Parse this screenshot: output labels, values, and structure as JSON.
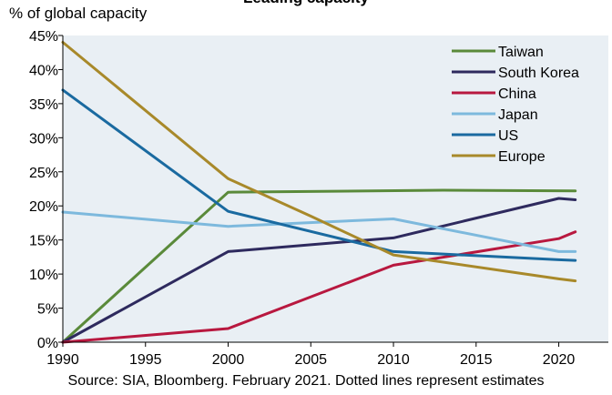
{
  "title": "Leading capacity",
  "y_unit_label": "% of global capacity",
  "source_note": "Source: SIA, Bloomberg. February 2021. Dotted lines represent estimates",
  "colors": {
    "plot_background": "#e9eff4",
    "axis": "#000000"
  },
  "chart_data": {
    "type": "line",
    "title": "Leading capacity",
    "ylabel": "% of global capacity",
    "xlabel": "",
    "xlim": [
      1990,
      2023
    ],
    "ylim": [
      0,
      45
    ],
    "x_ticks": [
      1990,
      1995,
      2000,
      2005,
      2010,
      2015,
      2020
    ],
    "y_ticks": [
      {
        "value": 0,
        "label": "0%"
      },
      {
        "value": 5,
        "label": "5%"
      },
      {
        "value": 10,
        "label": "10%"
      },
      {
        "value": 15,
        "label": "15%"
      },
      {
        "value": 20,
        "label": "20%"
      },
      {
        "value": 25,
        "label": "25%"
      },
      {
        "value": 30,
        "label": "30%"
      },
      {
        "value": 35,
        "label": "35%"
      },
      {
        "value": 40,
        "label": "40%"
      },
      {
        "value": 45,
        "label": "45%"
      }
    ],
    "grid": false,
    "legend_position": "top-right",
    "series": [
      {
        "name": "Taiwan",
        "color": "#5a8a3a",
        "x": [
          1990,
          2000,
          2013,
          2021
        ],
        "y": [
          0,
          22,
          22.3,
          22.2
        ]
      },
      {
        "name": "South Korea",
        "color": "#2e2a5e",
        "x": [
          1990,
          2000,
          2010,
          2020,
          2021
        ],
        "y": [
          0,
          13.3,
          15.3,
          21.1,
          20.9
        ]
      },
      {
        "name": "China",
        "color": "#b8183f",
        "x": [
          1990,
          2000,
          2010,
          2020,
          2021
        ],
        "y": [
          0,
          2,
          11.3,
          15.2,
          16.2
        ]
      },
      {
        "name": "Japan",
        "color": "#7db9dd",
        "x": [
          1990,
          2000,
          2010,
          2020,
          2021
        ],
        "y": [
          19.1,
          17,
          18.1,
          13.3,
          13.3
        ]
      },
      {
        "name": "US",
        "color": "#1a6aa0",
        "x": [
          1990,
          2000,
          2010,
          2020,
          2021
        ],
        "y": [
          37,
          19.2,
          13.3,
          12.1,
          12
        ]
      },
      {
        "name": "Europe",
        "color": "#a8892a",
        "x": [
          1990,
          2000,
          2005,
          2010,
          2020,
          2021
        ],
        "y": [
          44,
          24,
          18.5,
          12.8,
          9.3,
          9
        ]
      }
    ]
  }
}
